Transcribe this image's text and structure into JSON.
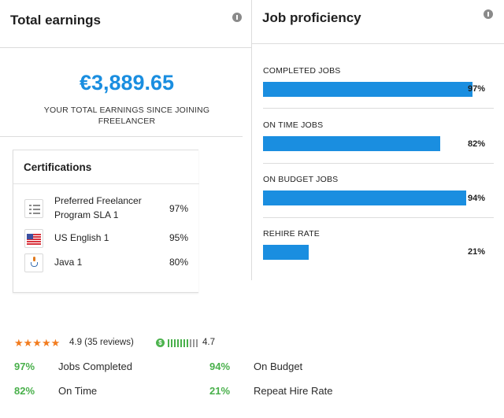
{
  "earnings": {
    "title": "Total earnings",
    "amount": "€3,889.65",
    "caption": "YOUR TOTAL EARNINGS SINCE JOINING FREELANCER"
  },
  "certifications": {
    "title": "Certifications",
    "items": [
      {
        "name_line1": "Preferred Freelancer",
        "name_line2": "Program SLA 1",
        "score": "97%",
        "icon": "list-icon"
      },
      {
        "name_line1": "US English 1",
        "score": "95%",
        "icon": "us-flag-icon"
      },
      {
        "name_line1": "Java 1",
        "score": "80%",
        "icon": "java-icon"
      }
    ]
  },
  "proficiency": {
    "title": "Job proficiency",
    "items": [
      {
        "label": "COMPLETED JOBS",
        "value": "97%",
        "fraction": 0.97
      },
      {
        "label": "ON TIME JOBS",
        "value": "82%",
        "fraction": 0.82
      },
      {
        "label": "ON BUDGET JOBS",
        "value": "94%",
        "fraction": 0.94
      },
      {
        "label": "REHIRE RATE",
        "value": "21%",
        "fraction": 0.21
      }
    ]
  },
  "summary": {
    "stars": "★★★★★",
    "rating": "4.9 (35 reviews)",
    "earnings_score": "4.7",
    "earnings_level": 0.7,
    "stats": [
      {
        "pct": "97%",
        "label": "Jobs Completed"
      },
      {
        "pct": "94%",
        "label": "On Budget"
      },
      {
        "pct": "82%",
        "label": "On Time"
      },
      {
        "pct": "21%",
        "label": "Repeat Hire Rate"
      }
    ]
  },
  "colors": {
    "accent_blue": "#1a8ee0",
    "star_orange": "#f27c1f",
    "stat_green": "#49b04b"
  }
}
